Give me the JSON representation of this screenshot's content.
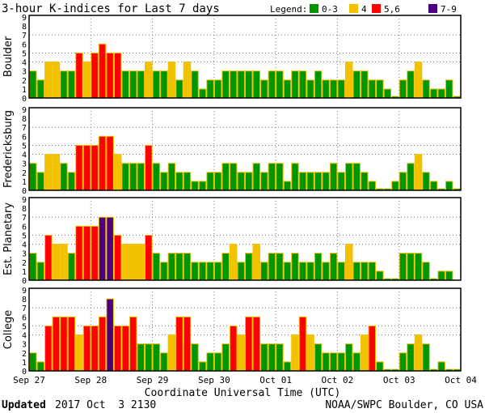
{
  "chart_data": {
    "type": "bar",
    "title": "3-hour K-indices for Last 7 days",
    "legend_label": "Legend:",
    "legend": [
      {
        "label": "0-3",
        "color": "#009600"
      },
      {
        "label": "4",
        "color": "#f2c200"
      },
      {
        "label": "5,6",
        "color": "#ff0000"
      },
      {
        "label": "7-9",
        "color": "#4a0080"
      }
    ],
    "bar_border_color": "#f2c200",
    "xlabel": "Coordinate Universal Time (UTC)",
    "x_ticks": [
      "Sep 27",
      "Sep 28",
      "Sep 29",
      "Sep 30",
      "Oct 01",
      "Oct 02",
      "Oct 03",
      "Oct 04"
    ],
    "bars_per_day": 8,
    "ylim": [
      0,
      9
    ],
    "y_ticks": [
      0,
      1,
      2,
      3,
      4,
      5,
      6,
      7,
      8,
      9
    ],
    "gridlines_y": [
      4,
      5,
      7
    ],
    "series": [
      {
        "name": "Boulder",
        "values": [
          3,
          2,
          4,
          4,
          3,
          3,
          5,
          4,
          5,
          6,
          5,
          5,
          3,
          3,
          3,
          4,
          3,
          3,
          4,
          2,
          4,
          3,
          1,
          2,
          2,
          3,
          3,
          3,
          3,
          3,
          2,
          3,
          3,
          2,
          3,
          3,
          2,
          3,
          2,
          2,
          2,
          4,
          3,
          3,
          2,
          2,
          1,
          0,
          2,
          3,
          4,
          2,
          1,
          1,
          2,
          0
        ]
      },
      {
        "name": "Fredericksburg",
        "values": [
          3,
          2,
          4,
          4,
          3,
          2,
          5,
          5,
          5,
          6,
          6,
          4,
          3,
          3,
          3,
          5,
          3,
          2,
          3,
          2,
          2,
          1,
          1,
          2,
          2,
          3,
          3,
          2,
          2,
          3,
          2,
          3,
          3,
          1,
          3,
          2,
          2,
          2,
          2,
          3,
          2,
          3,
          3,
          2,
          1,
          0,
          0,
          1,
          2,
          3,
          4,
          2,
          1,
          0,
          1,
          0
        ]
      },
      {
        "name": "Est. Planetary",
        "values": [
          3,
          2,
          5,
          4,
          4,
          3,
          6,
          6,
          6,
          7,
          7,
          5,
          4,
          4,
          4,
          5,
          3,
          2,
          3,
          3,
          3,
          2,
          2,
          2,
          2,
          3,
          4,
          2,
          3,
          4,
          2,
          3,
          3,
          2,
          3,
          2,
          2,
          3,
          2,
          3,
          2,
          4,
          2,
          2,
          2,
          1,
          0,
          0,
          3,
          3,
          3,
          2,
          0,
          1,
          1,
          null
        ]
      },
      {
        "name": "College",
        "values": [
          2,
          1,
          5,
          6,
          6,
          6,
          4,
          5,
          5,
          6,
          8,
          5,
          5,
          6,
          3,
          3,
          3,
          2,
          4,
          6,
          6,
          3,
          1,
          2,
          2,
          3,
          5,
          4,
          6,
          6,
          3,
          3,
          3,
          1,
          4,
          6,
          4,
          3,
          2,
          2,
          2,
          3,
          2,
          4,
          5,
          1,
          0,
          0,
          2,
          3,
          4,
          3,
          0,
          1,
          0,
          0
        ]
      }
    ]
  },
  "footer": {
    "updated_label": "Updated",
    "updated_value": "2017 Oct  3 2130",
    "source": "NOAA/SWPC Boulder, CO USA"
  }
}
